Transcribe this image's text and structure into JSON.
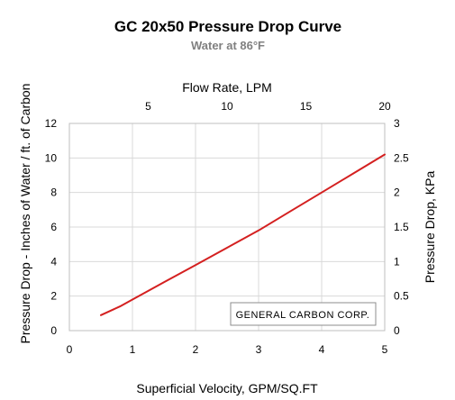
{
  "chart_data": {
    "type": "line",
    "title": "GC 20x50 Pressure Drop Curve",
    "subtitle": "Water at 86°F",
    "xlabel": "Superficial Velocity, GPM/SQ.FT",
    "ylabel": "Pressure Drop - Inches of Water / ft. of Carbon",
    "x2label": "Flow Rate, LPM",
    "y2label": "Pressure Drop, KPa",
    "xlim": [
      0,
      5
    ],
    "ylim": [
      0,
      12
    ],
    "x2lim": [
      0,
      20
    ],
    "y2lim": [
      0,
      3
    ],
    "xticks": [
      "0",
      "1",
      "2",
      "3",
      "4",
      "5"
    ],
    "yticks": [
      "0",
      "2",
      "4",
      "6",
      "8",
      "10",
      "12"
    ],
    "x2ticks": [
      "5",
      "10",
      "15",
      "20"
    ],
    "y2ticks": [
      "0",
      "0.5",
      "1",
      "1.5",
      "2",
      "2.5",
      "3"
    ],
    "grid": true,
    "line_color": "#d42020",
    "series": [
      {
        "x": [
          0.5,
          0.8,
          1.0,
          1.5,
          2.0,
          2.5,
          3.0,
          3.5,
          4.0,
          4.5,
          5.0
        ],
        "y": [
          0.9,
          1.4,
          1.8,
          2.8,
          3.8,
          4.8,
          5.8,
          6.9,
          8.0,
          9.1,
          10.2
        ]
      }
    ],
    "annotation": "GENERAL  CARBON CORP."
  }
}
